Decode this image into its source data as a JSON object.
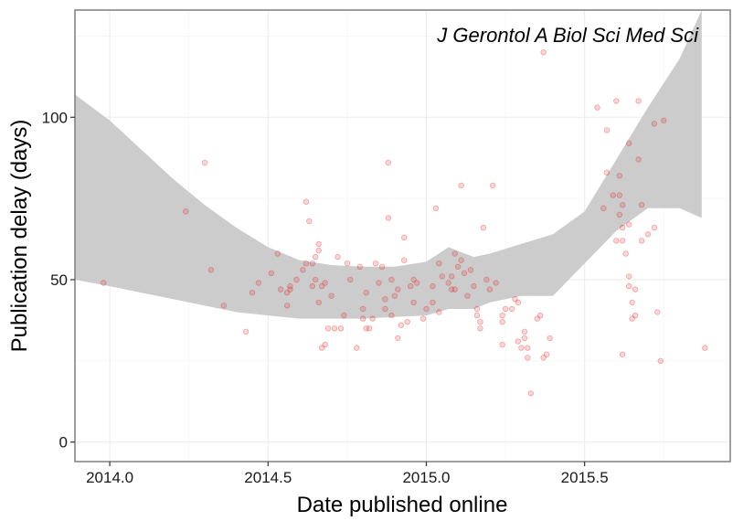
{
  "chart_data": {
    "type": "scatter",
    "title": "",
    "xlabel": "Date published online",
    "ylabel": "Publication delay (days)",
    "annotation": "J Gerontol A Biol Sci Med Sci",
    "xlim": [
      2013.89,
      2015.96
    ],
    "ylim": [
      -6,
      133
    ],
    "x_ticks": [
      2014.0,
      2014.5,
      2015.0,
      2015.5
    ],
    "x_tick_labels": [
      "2014.0",
      "2014.5",
      "2015.0",
      "2015.5"
    ],
    "y_ticks": [
      0,
      50,
      100
    ],
    "y_tick_labels": [
      "0",
      "50",
      "100"
    ],
    "grid": true,
    "legend": "none",
    "point_color": "#e41a1c",
    "band_color": "#cccccc",
    "points": [
      [
        2013.98,
        49
      ],
      [
        2014.24,
        71
      ],
      [
        2014.3,
        86
      ],
      [
        2014.32,
        53
      ],
      [
        2014.36,
        42
      ],
      [
        2014.43,
        34
      ],
      [
        2014.45,
        46
      ],
      [
        2014.47,
        49
      ],
      [
        2014.51,
        52
      ],
      [
        2014.53,
        58
      ],
      [
        2014.54,
        47
      ],
      [
        2014.56,
        46
      ],
      [
        2014.56,
        42
      ],
      [
        2014.57,
        47
      ],
      [
        2014.57,
        48
      ],
      [
        2014.59,
        50
      ],
      [
        2014.61,
        53
      ],
      [
        2014.62,
        74
      ],
      [
        2014.62,
        55
      ],
      [
        2014.63,
        68
      ],
      [
        2014.64,
        48
      ],
      [
        2014.64,
        55
      ],
      [
        2014.65,
        50
      ],
      [
        2014.65,
        57
      ],
      [
        2014.66,
        59
      ],
      [
        2014.66,
        61
      ],
      [
        2014.66,
        43
      ],
      [
        2014.67,
        48
      ],
      [
        2014.67,
        29
      ],
      [
        2014.68,
        49
      ],
      [
        2014.68,
        30
      ],
      [
        2014.69,
        35
      ],
      [
        2014.7,
        45
      ],
      [
        2014.71,
        35
      ],
      [
        2014.72,
        57
      ],
      [
        2014.73,
        35
      ],
      [
        2014.74,
        39
      ],
      [
        2014.75,
        55
      ],
      [
        2014.76,
        50
      ],
      [
        2014.78,
        29
      ],
      [
        2014.79,
        54
      ],
      [
        2014.8,
        38
      ],
      [
        2014.8,
        41
      ],
      [
        2014.81,
        35
      ],
      [
        2014.81,
        46
      ],
      [
        2014.82,
        35
      ],
      [
        2014.83,
        38
      ],
      [
        2014.84,
        55
      ],
      [
        2014.85,
        49
      ],
      [
        2014.86,
        54
      ],
      [
        2014.87,
        41
      ],
      [
        2014.87,
        44
      ],
      [
        2014.88,
        86
      ],
      [
        2014.88,
        69
      ],
      [
        2014.89,
        39
      ],
      [
        2014.89,
        50
      ],
      [
        2014.9,
        45
      ],
      [
        2014.91,
        32
      ],
      [
        2014.91,
        47
      ],
      [
        2014.92,
        36
      ],
      [
        2014.93,
        56
      ],
      [
        2014.93,
        63
      ],
      [
        2014.94,
        37
      ],
      [
        2014.95,
        48
      ],
      [
        2014.96,
        43
      ],
      [
        2014.96,
        50
      ],
      [
        2014.97,
        49
      ],
      [
        2014.99,
        38
      ],
      [
        2015.0,
        41
      ],
      [
        2015.02,
        48
      ],
      [
        2015.02,
        43
      ],
      [
        2015.03,
        72
      ],
      [
        2015.04,
        55
      ],
      [
        2015.04,
        40
      ],
      [
        2015.05,
        51
      ],
      [
        2015.07,
        49
      ],
      [
        2015.08,
        51
      ],
      [
        2015.08,
        47
      ],
      [
        2015.09,
        58
      ],
      [
        2015.09,
        47
      ],
      [
        2015.1,
        54
      ],
      [
        2015.11,
        79
      ],
      [
        2015.11,
        56
      ],
      [
        2015.12,
        52
      ],
      [
        2015.13,
        45
      ],
      [
        2015.14,
        53
      ],
      [
        2015.15,
        48
      ],
      [
        2015.16,
        41
      ],
      [
        2015.16,
        39
      ],
      [
        2015.17,
        37
      ],
      [
        2015.17,
        35
      ],
      [
        2015.18,
        66
      ],
      [
        2015.19,
        50
      ],
      [
        2015.2,
        47
      ],
      [
        2015.21,
        79
      ],
      [
        2015.22,
        49
      ],
      [
        2015.24,
        39
      ],
      [
        2015.24,
        37
      ],
      [
        2015.24,
        30
      ],
      [
        2015.25,
        41
      ],
      [
        2015.27,
        41
      ],
      [
        2015.28,
        44
      ],
      [
        2015.29,
        43
      ],
      [
        2015.29,
        31
      ],
      [
        2015.3,
        29
      ],
      [
        2015.31,
        34
      ],
      [
        2015.31,
        32
      ],
      [
        2015.32,
        29
      ],
      [
        2015.32,
        26
      ],
      [
        2015.33,
        15
      ],
      [
        2015.35,
        38
      ],
      [
        2015.36,
        39
      ],
      [
        2015.37,
        120
      ],
      [
        2015.37,
        26
      ],
      [
        2015.38,
        27
      ],
      [
        2015.39,
        32
      ],
      [
        2015.54,
        103
      ],
      [
        2015.56,
        72
      ],
      [
        2015.57,
        83
      ],
      [
        2015.57,
        96
      ],
      [
        2015.59,
        76
      ],
      [
        2015.6,
        105
      ],
      [
        2015.6,
        62
      ],
      [
        2015.61,
        76
      ],
      [
        2015.61,
        70
      ],
      [
        2015.62,
        73
      ],
      [
        2015.62,
        66
      ],
      [
        2015.62,
        62
      ],
      [
        2015.63,
        58
      ],
      [
        2015.64,
        67
      ],
      [
        2015.64,
        92
      ],
      [
        2015.64,
        51
      ],
      [
        2015.64,
        48
      ],
      [
        2015.65,
        43
      ],
      [
        2015.65,
        38
      ],
      [
        2015.66,
        39
      ],
      [
        2015.66,
        47
      ],
      [
        2015.62,
        27
      ],
      [
        2015.61,
        82
      ],
      [
        2015.67,
        105
      ],
      [
        2015.67,
        87
      ],
      [
        2015.68,
        73
      ],
      [
        2015.68,
        62
      ],
      [
        2015.7,
        64
      ],
      [
        2015.72,
        66
      ],
      [
        2015.72,
        98
      ],
      [
        2015.73,
        40
      ],
      [
        2015.74,
        25
      ],
      [
        2015.75,
        99
      ],
      [
        2015.88,
        29
      ]
    ],
    "smooth": {
      "x": [
        2013.89,
        2014.0,
        2014.1,
        2014.2,
        2014.3,
        2014.4,
        2014.5,
        2014.6,
        2014.7,
        2014.8,
        2014.9,
        2015.0,
        2015.07,
        2015.15,
        2015.2,
        2015.3,
        2015.4,
        2015.5,
        2015.6,
        2015.7,
        2015.8,
        2015.87
      ],
      "upper": [
        107,
        99,
        90,
        81,
        73,
        66,
        60,
        56,
        54.5,
        54,
        54,
        55.5,
        60,
        57,
        58,
        61,
        64,
        71,
        87,
        103,
        118,
        133
      ],
      "lower": [
        50,
        48,
        46,
        44,
        42,
        40,
        39,
        38,
        38,
        38,
        38.5,
        39,
        41,
        41,
        43,
        45,
        45,
        55,
        65,
        72,
        72,
        69
      ]
    }
  }
}
